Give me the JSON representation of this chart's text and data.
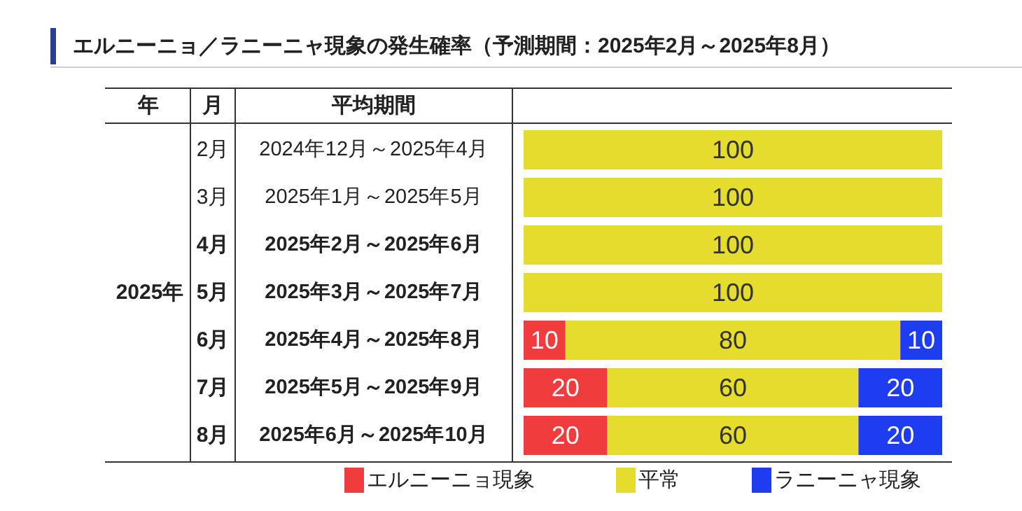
{
  "chart_data": {
    "type": "bar",
    "orientation": "horizontal",
    "stacked": true,
    "title": "エルニーニョ／ラニーニャ現象の発生確率（予測期間：2025年2月～2025年8月）",
    "categories": [
      "2月",
      "3月",
      "4月",
      "5月",
      "6月",
      "7月",
      "8月"
    ],
    "series": [
      {
        "name": "エルニーニョ現象",
        "color": "#f03c3c",
        "values": [
          null,
          null,
          null,
          null,
          10,
          20,
          20
        ]
      },
      {
        "name": "平常",
        "color": "#e6dc2d",
        "values": [
          100,
          100,
          100,
          100,
          80,
          60,
          60
        ]
      },
      {
        "name": "ラニーニャ現象",
        "color": "#1e3cf0",
        "values": [
          null,
          null,
          null,
          null,
          10,
          20,
          20
        ]
      }
    ],
    "xlim": [
      0,
      100
    ],
    "data_labels": true,
    "legend": "bottom",
    "annotations": [
      "年",
      "月",
      "平均期間",
      "2025年",
      "2024年12月～2025年4月",
      "2025年1月～2025年5月",
      "2025年2月～2025年6月",
      "2025年3月～2025年7月",
      "2025年4月～2025年8月",
      "2025年5月～2025年9月",
      "2025年6月～2025年10月"
    ]
  }
}
